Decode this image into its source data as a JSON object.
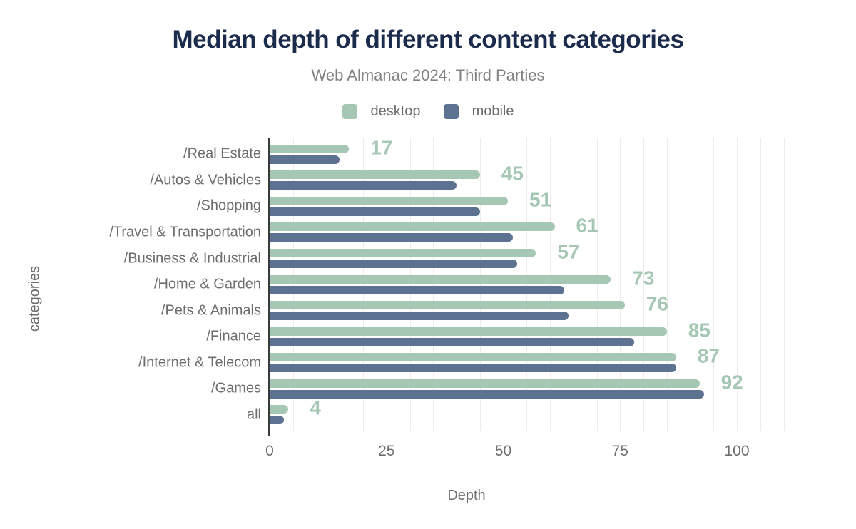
{
  "title": "Median depth of different content categories",
  "subtitle": "Web Almanac 2024: Third Parties",
  "legend": [
    {
      "label": "desktop",
      "color": "#a5c7b3"
    },
    {
      "label": "mobile",
      "color": "#5d7190"
    }
  ],
  "axes": {
    "x_label": "Depth",
    "y_label": "categories",
    "x_ticks": [
      0,
      25,
      50,
      75,
      100
    ],
    "x_max": 110
  },
  "colors": {
    "desktop": "#a5c7b3",
    "mobile": "#5d7190",
    "title": "#1b2b4b",
    "subtitle_text": "#828282",
    "axis_text": "#6e6e6e",
    "gridline": "#ececec",
    "axis_line": "#3a3a3a",
    "background": "#ffffff"
  },
  "chart_data": {
    "type": "bar",
    "orientation": "horizontal",
    "title": "Median depth of different content categories",
    "subtitle": "Web Almanac 2024: Third Parties",
    "xlabel": "Depth",
    "ylabel": "categories",
    "xlim": [
      0,
      110
    ],
    "x_ticks": [
      0,
      25,
      50,
      75,
      100
    ],
    "grid": "vertical minor gridlines every 5 units",
    "legend_position": "top-center",
    "value_labels": "desktop series values shown right of bars",
    "categories": [
      "/Real Estate",
      "/Autos & Vehicles",
      "/Shopping",
      "/Travel & Transportation",
      "/Business & Industrial",
      "/Home & Garden",
      "/Pets & Animals",
      "/Finance",
      "/Internet & Telecom",
      "/Games",
      "all"
    ],
    "series": [
      {
        "name": "desktop",
        "color": "#a5c7b3",
        "values": [
          17,
          45,
          51,
          61,
          57,
          73,
          76,
          85,
          87,
          92,
          4
        ]
      },
      {
        "name": "mobile",
        "color": "#5d7190",
        "values": [
          15,
          40,
          45,
          52,
          53,
          63,
          64,
          78,
          87,
          93,
          3
        ]
      }
    ]
  }
}
